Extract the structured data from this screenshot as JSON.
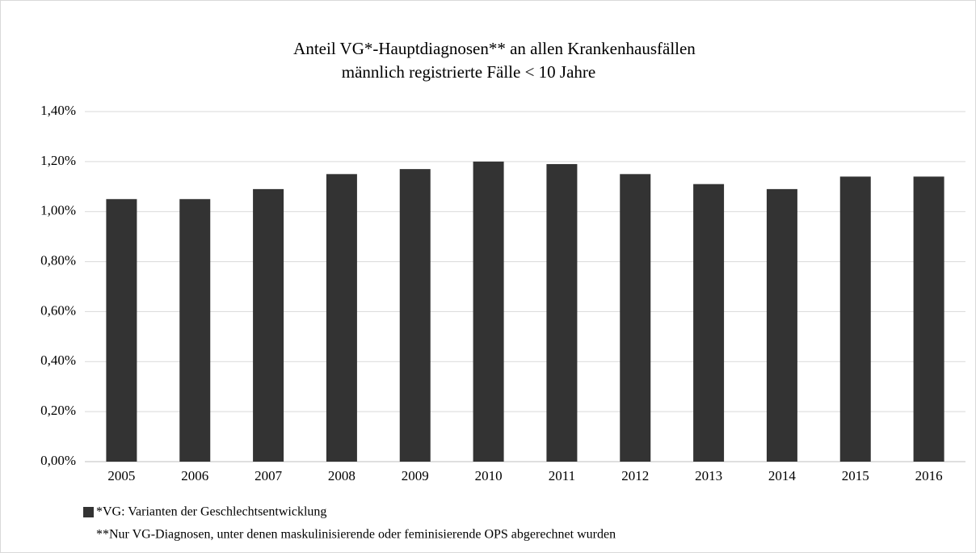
{
  "chart_data": {
    "type": "bar",
    "title": "Anteil VG*-Hauptdiagnosen** an allen Krankenhausfällen",
    "subtitle": "männlich registrierte Fälle < 10 Jahre",
    "categories": [
      "2005",
      "2006",
      "2007",
      "2008",
      "2009",
      "2010",
      "2011",
      "2012",
      "2013",
      "2014",
      "2015",
      "2016"
    ],
    "series": [
      {
        "name": "*VG: Varianten der Geschlechtsentwicklung",
        "color": "#333333",
        "values": [
          1.05,
          1.05,
          1.09,
          1.15,
          1.17,
          1.2,
          1.19,
          1.15,
          1.11,
          1.09,
          1.14,
          1.14
        ]
      }
    ],
    "annotations": [
      "**Nur VG-Diagnosen, unter denen maskulinisierende oder feminisierende OPS abgerechnet wurden"
    ],
    "ylim": [
      0,
      1.4
    ],
    "yticks": [
      {
        "value": 0,
        "label": "0,00%"
      },
      {
        "value": 0.2,
        "label": "0,20%"
      },
      {
        "value": 0.4,
        "label": "0,40%"
      },
      {
        "value": 0.6,
        "label": "0,60%"
      },
      {
        "value": 0.8,
        "label": "0,80%"
      },
      {
        "value": 1.0,
        "label": "1,00%"
      },
      {
        "value": 1.2,
        "label": "1,20%"
      },
      {
        "value": 1.4,
        "label": "1,40%"
      }
    ],
    "grid": true,
    "legend": "bottom-left"
  }
}
